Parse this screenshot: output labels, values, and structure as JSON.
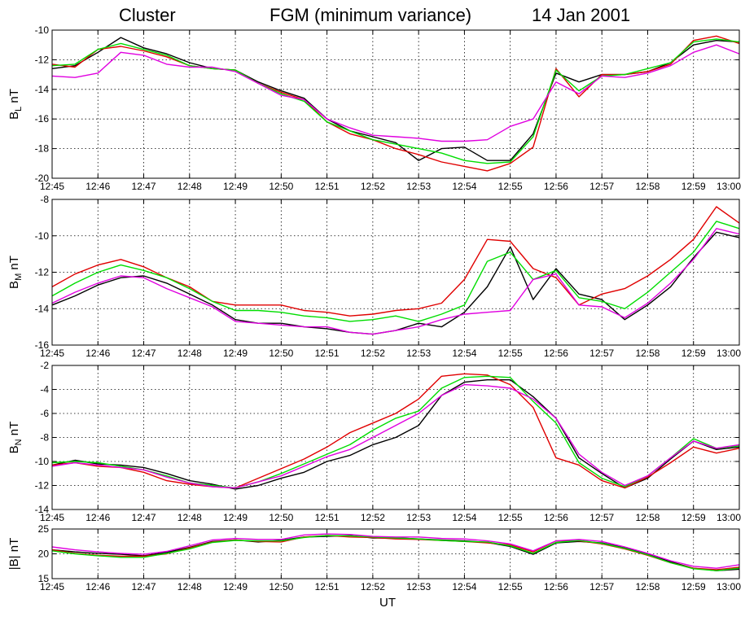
{
  "header": {
    "spacecraft": "Cluster",
    "instrument": "FGM (minimum variance)",
    "date": "14 Jan 2001"
  },
  "colors": {
    "series": [
      "#000000",
      "#e00000",
      "#00dd00",
      "#e000e0"
    ],
    "grid": "#000000",
    "axes": "#000000"
  },
  "chart_data": [
    {
      "type": "line",
      "ylabel_main": "B",
      "ylabel_sub": "L",
      "ylabel_unit": "nT",
      "ylim": [
        -20,
        -10
      ],
      "yticks": [
        -20,
        -18,
        -16,
        -14,
        -12,
        -10
      ],
      "xticks": [
        "12:45",
        "12:46",
        "12:47",
        "12:48",
        "12:49",
        "12:50",
        "12:51",
        "12:52",
        "12:53",
        "12:54",
        "12:55",
        "12:56",
        "12:57",
        "12:58",
        "12:59",
        "13:00"
      ],
      "x_minutes": [
        0,
        0.5,
        1,
        1.5,
        2,
        2.5,
        3,
        3.5,
        4,
        4.5,
        5,
        5.5,
        6,
        6.5,
        7,
        7.5,
        8,
        8.5,
        9,
        9.5,
        10,
        10.5,
        11,
        11.5,
        12,
        12.5,
        13,
        13.5,
        14,
        14.5,
        15
      ],
      "grid": true,
      "series": [
        {
          "values": [
            -12.6,
            -12.4,
            -11.5,
            -10.5,
            -11.2,
            -11.6,
            -12.2,
            -12.6,
            -12.7,
            -13.5,
            -14.1,
            -14.6,
            -16.0,
            -16.8,
            -17.2,
            -17.6,
            -18.8,
            -18.0,
            -17.9,
            -18.8,
            -18.8,
            -17.0,
            -12.9,
            -13.5,
            -13.0,
            -13.0,
            -12.8,
            -12.2,
            -11.0,
            -10.7,
            -10.8
          ]
        },
        {
          "values": [
            -12.3,
            -12.5,
            -11.3,
            -11.1,
            -11.4,
            -11.8,
            -12.4,
            -12.6,
            -12.7,
            -13.6,
            -14.2,
            -14.7,
            -16.2,
            -17.0,
            -17.4,
            -18.0,
            -18.4,
            -18.9,
            -19.2,
            -19.5,
            -19.0,
            -17.9,
            -12.6,
            -14.5,
            -13.0,
            -13.0,
            -12.8,
            -12.3,
            -10.7,
            -10.4,
            -10.9
          ]
        },
        {
          "values": [
            -12.4,
            -12.3,
            -11.3,
            -10.9,
            -11.3,
            -11.7,
            -12.4,
            -12.6,
            -12.7,
            -13.6,
            -14.3,
            -14.8,
            -16.2,
            -16.8,
            -17.4,
            -17.7,
            -18.0,
            -18.3,
            -18.8,
            -19.0,
            -18.9,
            -17.2,
            -12.7,
            -14.1,
            -13.1,
            -13.0,
            -12.6,
            -12.2,
            -10.8,
            -10.6,
            -10.8
          ]
        },
        {
          "values": [
            -13.1,
            -13.2,
            -12.9,
            -11.5,
            -11.7,
            -12.3,
            -12.5,
            -12.5,
            -12.8,
            -13.6,
            -14.4,
            -14.7,
            -16.0,
            -16.6,
            -17.1,
            -17.2,
            -17.3,
            -17.5,
            -17.5,
            -17.4,
            -16.5,
            -16.0,
            -13.5,
            -14.3,
            -13.1,
            -13.2,
            -12.9,
            -12.4,
            -11.5,
            -11.0,
            -11.6
          ]
        }
      ]
    },
    {
      "type": "line",
      "ylabel_main": "B",
      "ylabel_sub": "M",
      "ylabel_unit": "nT",
      "ylim": [
        -16,
        -8
      ],
      "yticks": [
        -16,
        -14,
        -12,
        -10,
        -8
      ],
      "xticks": [
        "12:45",
        "12:46",
        "12:47",
        "12:48",
        "12:49",
        "12:50",
        "12:51",
        "12:52",
        "12:53",
        "12:54",
        "12:55",
        "12:56",
        "12:57",
        "12:58",
        "12:59",
        "13:00"
      ],
      "x_minutes": [
        0,
        0.5,
        1,
        1.5,
        2,
        2.5,
        3,
        3.5,
        4,
        4.5,
        5,
        5.5,
        6,
        6.5,
        7,
        7.5,
        8,
        8.5,
        9,
        9.5,
        10,
        10.5,
        11,
        11.5,
        12,
        12.5,
        13,
        13.5,
        14,
        14.5,
        15
      ],
      "grid": true,
      "series": [
        {
          "values": [
            -13.8,
            -13.3,
            -12.7,
            -12.3,
            -12.2,
            -12.6,
            -13.2,
            -13.8,
            -14.6,
            -14.8,
            -14.8,
            -15.0,
            -15.1,
            -15.3,
            -15.4,
            -15.2,
            -14.8,
            -15.0,
            -14.2,
            -12.8,
            -10.6,
            -13.5,
            -11.8,
            -13.2,
            -13.5,
            -14.6,
            -13.8,
            -12.8,
            -11.2,
            -9.8,
            -10.1
          ]
        },
        {
          "values": [
            -12.8,
            -12.1,
            -11.6,
            -11.3,
            -11.7,
            -12.3,
            -12.8,
            -13.6,
            -13.8,
            -13.8,
            -13.8,
            -14.1,
            -14.2,
            -14.4,
            -14.3,
            -14.1,
            -14.0,
            -13.7,
            -12.4,
            -10.2,
            -10.3,
            -11.8,
            -12.3,
            -13.8,
            -13.2,
            -12.9,
            -12.2,
            -11.3,
            -10.2,
            -8.4,
            -9.3
          ]
        },
        {
          "values": [
            -13.3,
            -12.6,
            -12.0,
            -11.6,
            -11.9,
            -12.3,
            -12.9,
            -13.6,
            -14.1,
            -14.1,
            -14.2,
            -14.4,
            -14.5,
            -14.7,
            -14.6,
            -14.4,
            -14.7,
            -14.3,
            -13.8,
            -11.4,
            -10.9,
            -12.4,
            -11.9,
            -13.4,
            -13.6,
            -14.0,
            -13.1,
            -12.0,
            -10.9,
            -9.2,
            -9.6
          ]
        },
        {
          "values": [
            -13.7,
            -13.1,
            -12.6,
            -12.2,
            -12.3,
            -12.9,
            -13.4,
            -13.9,
            -14.7,
            -14.8,
            -14.9,
            -15.0,
            -15.0,
            -15.3,
            -15.4,
            -15.2,
            -15.0,
            -14.6,
            -14.3,
            -14.2,
            -14.1,
            -12.4,
            -12.1,
            -13.8,
            -13.9,
            -14.5,
            -13.7,
            -12.6,
            -11.3,
            -9.6,
            -9.9
          ]
        }
      ]
    },
    {
      "type": "line",
      "ylabel_main": "B",
      "ylabel_sub": "N",
      "ylabel_unit": "nT",
      "ylim": [
        -14,
        -2
      ],
      "yticks": [
        -14,
        -12,
        -10,
        -8,
        -6,
        -4,
        -2
      ],
      "xticks": [
        "12:45",
        "12:46",
        "12:47",
        "12:48",
        "12:49",
        "12:50",
        "12:51",
        "12:52",
        "12:53",
        "12:54",
        "12:55",
        "12:56",
        "12:57",
        "12:58",
        "12:59",
        "13:00"
      ],
      "x_minutes": [
        0,
        0.5,
        1,
        1.5,
        2,
        2.5,
        3,
        3.5,
        4,
        4.5,
        5,
        5.5,
        6,
        6.5,
        7,
        7.5,
        8,
        8.5,
        9,
        9.5,
        10,
        10.5,
        11,
        11.5,
        12,
        12.5,
        13,
        13.5,
        14,
        14.5,
        15
      ],
      "grid": true,
      "series": [
        {
          "values": [
            -10.3,
            -9.9,
            -10.2,
            -10.3,
            -10.5,
            -11.0,
            -11.6,
            -11.9,
            -12.3,
            -12.0,
            -11.4,
            -10.9,
            -10.0,
            -9.5,
            -8.6,
            -8.0,
            -7.0,
            -4.5,
            -3.4,
            -3.2,
            -3.2,
            -4.6,
            -6.4,
            -9.7,
            -11.0,
            -12.2,
            -11.4,
            -9.8,
            -8.3,
            -9.0,
            -8.8
          ]
        },
        {
          "values": [
            -10.3,
            -10.1,
            -10.4,
            -10.5,
            -10.9,
            -11.6,
            -11.9,
            -12.1,
            -12.2,
            -11.4,
            -10.6,
            -9.8,
            -8.8,
            -7.6,
            -6.8,
            -6.0,
            -4.8,
            -2.9,
            -2.7,
            -2.8,
            -3.6,
            -5.5,
            -9.7,
            -10.3,
            -11.6,
            -12.2,
            -11.3,
            -10.1,
            -8.8,
            -9.3,
            -8.9
          ]
        },
        {
          "values": [
            -10.1,
            -10.0,
            -10.1,
            -10.4,
            -10.7,
            -11.2,
            -11.8,
            -12.0,
            -12.2,
            -11.7,
            -11.0,
            -10.2,
            -9.4,
            -8.6,
            -7.4,
            -6.4,
            -5.8,
            -3.9,
            -3.0,
            -2.9,
            -3.0,
            -5.0,
            -6.8,
            -10.1,
            -11.4,
            -12.1,
            -11.2,
            -9.7,
            -8.1,
            -8.9,
            -8.7
          ]
        },
        {
          "values": [
            -10.4,
            -10.1,
            -10.3,
            -10.5,
            -10.7,
            -11.3,
            -11.8,
            -12.1,
            -12.2,
            -11.7,
            -11.2,
            -10.4,
            -9.6,
            -9.0,
            -8.0,
            -7.0,
            -6.0,
            -4.5,
            -3.6,
            -3.7,
            -3.9,
            -4.8,
            -6.4,
            -9.4,
            -10.9,
            -12.0,
            -11.2,
            -9.7,
            -8.3,
            -8.9,
            -8.6
          ]
        }
      ]
    },
    {
      "type": "line",
      "ylabel_main": "|B|",
      "ylabel_sub": "",
      "ylabel_unit": "nT",
      "ylim": [
        15,
        25
      ],
      "yticks": [
        15,
        20,
        25
      ],
      "xticks": [
        "12:45",
        "12:46",
        "12:47",
        "12:48",
        "12:49",
        "12:50",
        "12:51",
        "12:52",
        "12:53",
        "12:54",
        "12:55",
        "12:56",
        "12:57",
        "12:58",
        "12:59",
        "13:00"
      ],
      "xlabel": "UT",
      "x_minutes": [
        0,
        0.5,
        1,
        1.5,
        2,
        2.5,
        3,
        3.5,
        4,
        4.5,
        5,
        5.5,
        6,
        6.5,
        7,
        7.5,
        8,
        8.5,
        9,
        9.5,
        10,
        10.5,
        11,
        11.5,
        12,
        12.5,
        13,
        13.5,
        14,
        14.5,
        15
      ],
      "grid": true,
      "series": [
        {
          "values": [
            20.8,
            20.4,
            20.1,
            19.9,
            19.6,
            20.3,
            21.3,
            22.5,
            22.8,
            22.4,
            22.7,
            23.4,
            23.5,
            23.7,
            23.2,
            23.2,
            23.0,
            22.8,
            22.6,
            22.3,
            21.5,
            19.9,
            22.2,
            22.5,
            22.2,
            21.2,
            19.9,
            18.4,
            17.1,
            16.6,
            16.9
          ]
        },
        {
          "values": [
            20.8,
            20.1,
            19.7,
            19.5,
            19.5,
            20.0,
            21.2,
            22.4,
            22.8,
            22.5,
            22.4,
            23.4,
            23.7,
            23.4,
            23.3,
            23.0,
            22.9,
            22.7,
            22.5,
            22.2,
            21.8,
            20.4,
            22.6,
            22.6,
            22.0,
            21.0,
            19.7,
            18.2,
            17.1,
            16.8,
            17.3
          ]
        },
        {
          "values": [
            20.6,
            20.0,
            19.6,
            19.3,
            19.3,
            20.1,
            21.0,
            22.3,
            22.7,
            22.6,
            22.6,
            23.3,
            23.7,
            23.6,
            23.4,
            23.2,
            23.0,
            22.7,
            22.5,
            22.4,
            21.6,
            20.1,
            22.3,
            22.7,
            22.1,
            21.1,
            19.8,
            18.2,
            17.0,
            16.6,
            17.1
          ]
        },
        {
          "values": [
            21.4,
            20.8,
            20.4,
            20.1,
            19.9,
            20.5,
            21.6,
            22.8,
            23.1,
            22.9,
            22.9,
            23.8,
            24.0,
            23.9,
            23.5,
            23.4,
            23.4,
            23.1,
            23.0,
            22.6,
            22.0,
            20.6,
            22.6,
            22.9,
            22.5,
            21.4,
            20.1,
            18.6,
            17.5,
            17.1,
            17.8
          ]
        }
      ]
    }
  ]
}
